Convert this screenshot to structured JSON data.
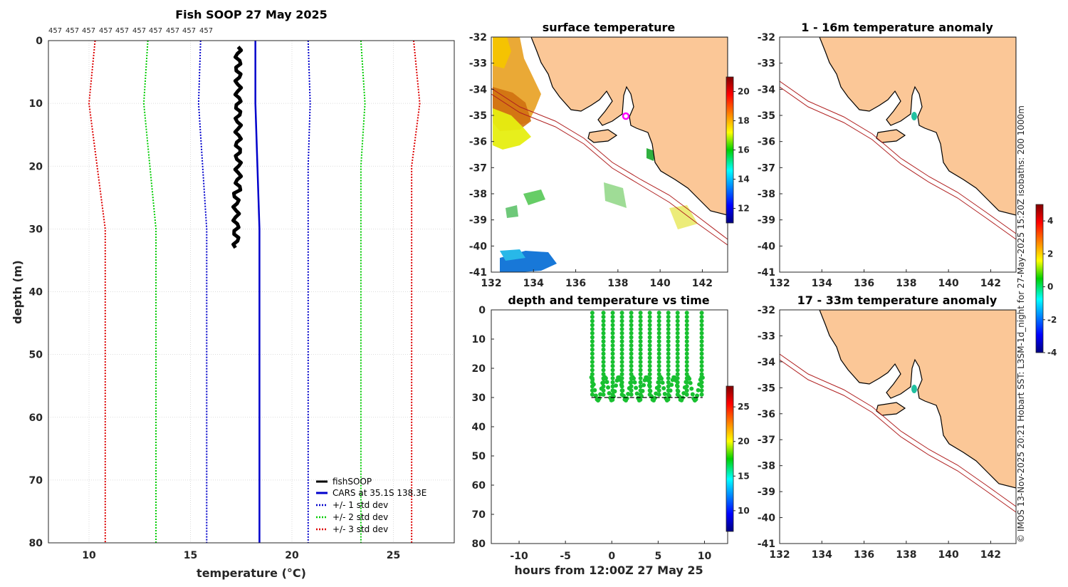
{
  "profile": {
    "title": "Fish SOOP 27 May 2025",
    "counts": [
      "457",
      "457",
      "457",
      "457",
      "457",
      "457",
      "457",
      "457",
      "457",
      "457"
    ],
    "xlabel": "temperature (°C)",
    "ylabel": "depth (m)",
    "legend": [
      "fishSOOP",
      "CARS at 35.1S 138.3E",
      "+/- 1 std dev",
      "+/- 2 std dev",
      "+/- 3 std dev"
    ]
  },
  "maps": {
    "surface_title": "surface temperature",
    "anom1_title": "1 - 16m temperature anomaly",
    "anom2_title": "17 - 33m temperature anomaly",
    "time_title": "depth and temperature vs time",
    "time_xlabel": "hours from 12:00Z 27 May 25",
    "sidebar_text": "© IMOS 13-Nov-2025 20:21 Hobart SST: L3SM-1d_night for 27-May-2025 15:20Z isobaths: 200  1000m"
  },
  "colors": {
    "fish": "#000000",
    "cars": "#0000cc",
    "sd1": "#0000cc",
    "sd2": "#00cc00",
    "sd3": "#dd0000",
    "land": "#fbc797"
  },
  "chart_data": [
    {
      "type": "line",
      "title": "Fish SOOP 27 May 2025",
      "xlabel": "temperature (°C)",
      "ylabel": "depth (m)",
      "xlim": [
        8,
        28
      ],
      "ylim": [
        80,
        0
      ],
      "xticks": [
        10,
        15,
        20,
        25
      ],
      "yticks": [
        0,
        10,
        20,
        30,
        40,
        50,
        60,
        70,
        80
      ],
      "depth": [
        0,
        10,
        20,
        30,
        80
      ],
      "series": [
        {
          "name": "CARS at 35.1S 138.3E",
          "values": [
            18.2,
            18.2,
            18.3,
            18.4,
            18.4
          ]
        },
        {
          "name": "+1 std dev",
          "values": [
            20.8,
            20.9,
            20.8,
            20.8,
            20.8
          ]
        },
        {
          "name": "-1 std dev",
          "values": [
            15.5,
            15.4,
            15.6,
            15.8,
            15.8
          ]
        },
        {
          "name": "+2 std dev",
          "values": [
            23.4,
            23.6,
            23.4,
            23.4,
            23.4
          ]
        },
        {
          "name": "-2 std dev",
          "values": [
            12.9,
            12.7,
            13.0,
            13.3,
            13.3
          ]
        },
        {
          "name": "+3 std dev",
          "values": [
            26.0,
            26.3,
            25.9,
            25.9,
            25.9
          ]
        },
        {
          "name": "-3 std dev",
          "values": [
            10.3,
            10.0,
            10.4,
            10.8,
            10.8
          ]
        }
      ],
      "fish_depth": [
        1,
        5,
        10,
        15,
        20,
        25,
        30,
        33
      ],
      "fish_temp": [
        17.4,
        17.4,
        17.35,
        17.3,
        17.3,
        17.2,
        17.3,
        17.5
      ]
    },
    {
      "type": "map",
      "title": "surface temperature",
      "xlim": [
        132,
        143.2
      ],
      "ylim": [
        -41,
        -32
      ],
      "xticks": [
        132,
        134,
        136,
        138,
        140,
        142
      ],
      "yticks": [
        -32,
        -33,
        -34,
        -35,
        -36,
        -37,
        -38,
        -39,
        -40,
        -41
      ],
      "colorbar": {
        "ticks": [
          12,
          14,
          16,
          18,
          20
        ],
        "range": [
          11,
          21
        ]
      },
      "station": {
        "lon": 138.3,
        "lat": -35.1
      }
    },
    {
      "type": "map",
      "title": "1 - 16m temperature anomaly",
      "xlim": [
        132,
        143.2
      ],
      "ylim": [
        -41,
        -32
      ],
      "xticks": [
        132,
        134,
        136,
        138,
        140,
        142
      ],
      "yticks": [
        -32,
        -33,
        -34,
        -35,
        -36,
        -37,
        -38,
        -39,
        -40,
        -41
      ],
      "colorbar": {
        "ticks": [
          -4,
          -2,
          0,
          2,
          4
        ],
        "range": [
          -4,
          5
        ]
      },
      "station": {
        "lon": 138.3,
        "lat": -35.1
      }
    },
    {
      "type": "map",
      "title": "17 - 33m temperature anomaly",
      "xlim": [
        132,
        143.2
      ],
      "ylim": [
        -41,
        -32
      ],
      "xticks": [
        132,
        134,
        136,
        138,
        140,
        142
      ],
      "yticks": [
        -32,
        -33,
        -34,
        -35,
        -36,
        -37,
        -38,
        -39,
        -40,
        -41
      ],
      "station": {
        "lon": 138.3,
        "lat": -35.1
      }
    },
    {
      "type": "scatter",
      "title": "depth and temperature vs time",
      "xlabel": "hours from 12:00Z 27 May 25",
      "xlim": [
        -13,
        12.5
      ],
      "ylim": [
        80,
        0
      ],
      "xticks": [
        -10,
        -5,
        0,
        5,
        10
      ],
      "yticks": [
        0,
        10,
        20,
        30,
        40,
        50,
        60,
        70,
        80
      ],
      "time_range": [
        -2.2,
        9.8
      ],
      "dive_times": [
        -2.1,
        -0.9,
        0.1,
        1.1,
        2.1,
        3.1,
        4.1,
        5.1,
        6.1,
        7.1,
        8.1,
        9.7
      ],
      "bottom_depth": 30,
      "colorbar": {
        "ticks": [
          10,
          15,
          20,
          25
        ],
        "range": [
          7,
          28
        ]
      }
    }
  ]
}
